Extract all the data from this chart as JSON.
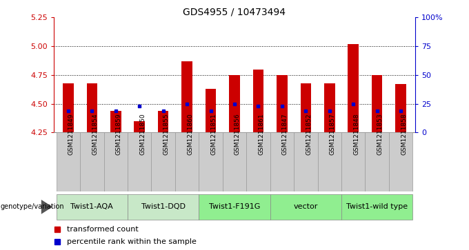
{
  "title": "GDS4955 / 10473494",
  "samples": [
    "GSM1211849",
    "GSM1211854",
    "GSM1211859",
    "GSM1211850",
    "GSM1211855",
    "GSM1211860",
    "GSM1211851",
    "GSM1211856",
    "GSM1211861",
    "GSM1211847",
    "GSM1211852",
    "GSM1211857",
    "GSM1211848",
    "GSM1211853",
    "GSM1211858"
  ],
  "red_values": [
    4.68,
    4.68,
    4.44,
    4.35,
    4.44,
    4.87,
    4.63,
    4.75,
    4.8,
    4.75,
    4.68,
    4.68,
    5.02,
    4.75,
    4.67
  ],
  "blue_values": [
    4.44,
    4.44,
    4.44,
    4.48,
    4.44,
    4.5,
    4.44,
    4.5,
    4.48,
    4.48,
    4.44,
    4.44,
    4.5,
    4.44,
    4.44
  ],
  "groups": [
    {
      "label": "Twist1-AQA",
      "start": 0,
      "end": 3,
      "light": true
    },
    {
      "label": "Twist1-DQD",
      "start": 3,
      "end": 6,
      "light": true
    },
    {
      "label": "Twist1-F191G",
      "start": 6,
      "end": 9,
      "light": false
    },
    {
      "label": "vector",
      "start": 9,
      "end": 12,
      "light": false
    },
    {
      "label": "Twist1-wild type",
      "start": 12,
      "end": 15,
      "light": false
    }
  ],
  "ylim_left": [
    4.25,
    5.25
  ],
  "ylim_right": [
    0,
    100
  ],
  "bar_color": "#cc0000",
  "dot_color": "#0000cc",
  "bar_bottom": 4.25,
  "title_fontsize": 10,
  "tick_label_fontsize": 6.5,
  "group_label_fontsize": 8,
  "legend_label_red": "transformed count",
  "legend_label_blue": "percentile rank within the sample",
  "left_axis_color": "#cc0000",
  "right_axis_color": "#0000cc",
  "light_green": "#c8e8c8",
  "dark_green": "#90ee90",
  "sample_box_color": "#cccccc",
  "genotype_label": "genotype/variation"
}
